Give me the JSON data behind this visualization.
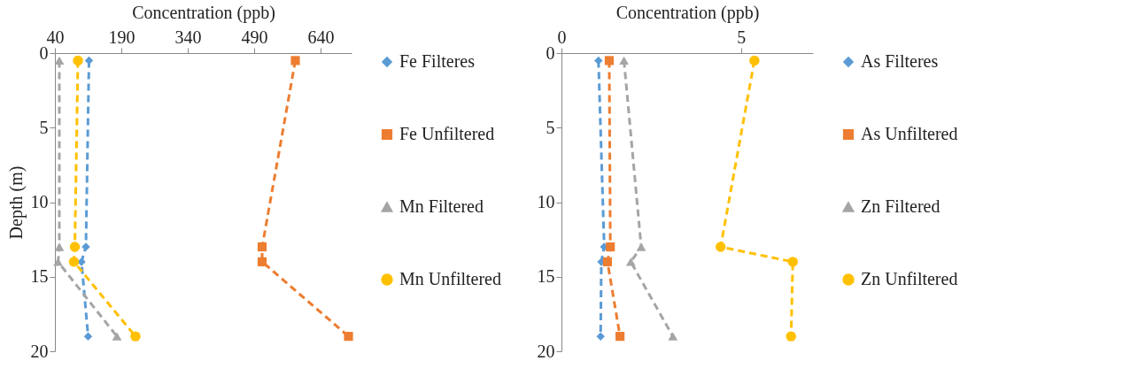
{
  "chart_data": [
    {
      "type": "line",
      "xlabel": "Concentration (ppb)",
      "ylabel": "Depth (m)",
      "xlim": [
        40,
        710
      ],
      "xticks": [
        40,
        190,
        340,
        490,
        640
      ],
      "ylim": [
        20,
        0
      ],
      "yticks": [
        0,
        5,
        10,
        15,
        20
      ],
      "grid": false,
      "legend": "right",
      "line_style": "dashed",
      "series": [
        {
          "name": "Fe Filteres",
          "color": "#5b9bd5",
          "marker": "diamond",
          "x": [
            117,
            110,
            100,
            115
          ],
          "values": [
            0.5,
            13,
            14,
            19
          ]
        },
        {
          "name": "Fe Unfiltered",
          "color": "#ed7d31",
          "marker": "square",
          "x": [
            583,
            508,
            508,
            703
          ],
          "values": [
            0.5,
            13,
            14,
            19
          ]
        },
        {
          "name": "Mn Filtered",
          "color": "#a5a5a5",
          "marker": "triangle",
          "x": [
            50,
            50,
            47,
            180
          ],
          "values": [
            0.5,
            13,
            14,
            19
          ]
        },
        {
          "name": "Mn Unfiltered",
          "color": "#ffc000",
          "marker": "circle",
          "x": [
            92,
            85,
            83,
            222
          ],
          "values": [
            0.5,
            13,
            14,
            19
          ]
        }
      ]
    },
    {
      "type": "line",
      "xlabel": "Concentration (ppb)",
      "xlim": [
        0,
        7
      ],
      "xticks": [
        0,
        5
      ],
      "ylim": [
        20,
        0
      ],
      "yticks": [
        0,
        5,
        10,
        15,
        20
      ],
      "grid": false,
      "legend": "right",
      "line_style": "dashed",
      "series": [
        {
          "name": "As Filteres",
          "color": "#5b9bd5",
          "marker": "diamond",
          "x": [
            1.03,
            1.19,
            1.11,
            1.09
          ],
          "values": [
            0.5,
            13,
            14,
            19
          ]
        },
        {
          "name": "As Unfiltered",
          "color": "#ed7d31",
          "marker": "square",
          "x": [
            1.33,
            1.36,
            1.28,
            1.63
          ],
          "values": [
            0.5,
            13,
            14,
            19
          ]
        },
        {
          "name": "Zn Filtered",
          "color": "#a5a5a5",
          "marker": "triangle",
          "x": [
            1.74,
            2.22,
            1.93,
            3.1
          ],
          "values": [
            0.5,
            13,
            14,
            19
          ]
        },
        {
          "name": "Zn Unfiltered",
          "color": "#ffc000",
          "marker": "circle",
          "x": [
            5.37,
            4.43,
            6.44,
            6.39
          ],
          "values": [
            0.5,
            13,
            14,
            19
          ]
        }
      ]
    }
  ]
}
